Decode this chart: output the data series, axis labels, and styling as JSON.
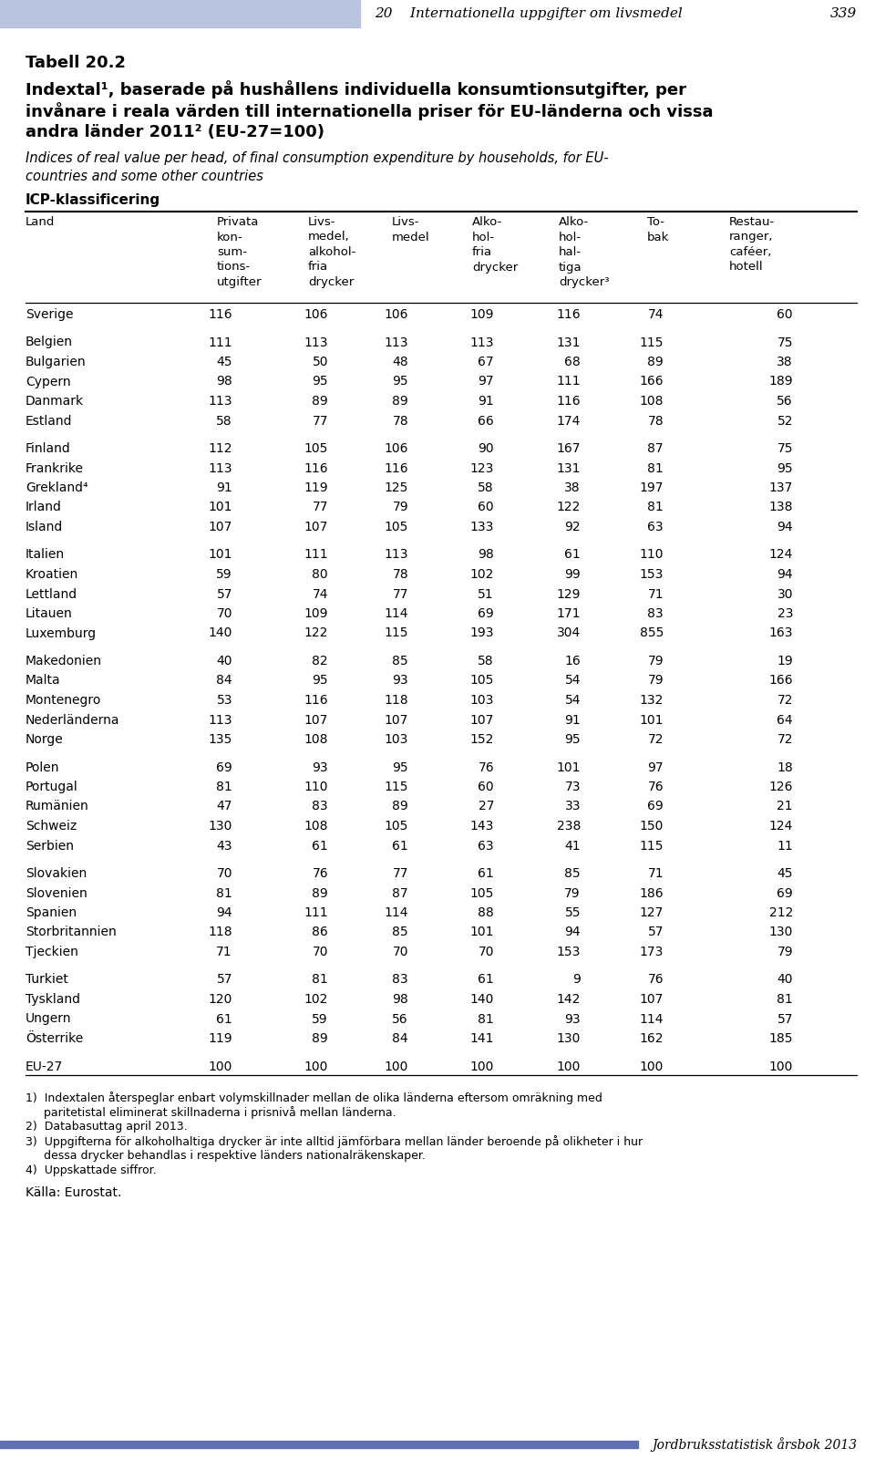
{
  "header_bar_color": "#b8c4e0",
  "page_header_italic": "20    Internationella uppgifter om livsmedel",
  "page_number": "339",
  "title_bold": "Tabell 20.2",
  "title_line1": "Indextal¹, baserade på hushållens individuella konsumtionsutgifter, per",
  "title_line2": "invånare i reala värden till internationella priser för EU-länderna och vissa",
  "title_line3": "andra länder 2011² (EU-27=100)",
  "subtitle_line1": "Indices of real value per head, of final consumption expenditure by households, for EU-",
  "subtitle_line2": "countries and some other countries",
  "icp_label": "ICP-klassificering",
  "col_headers": [
    [
      "Land",
      28,
      "left"
    ],
    [
      "Privata\nkon-\nsum-\ntions-\nutgifter",
      238,
      "left"
    ],
    [
      "Livs-\nmedel,\nalkohol-\nfria\ndrycker",
      338,
      "left"
    ],
    [
      "Livs-\nmedel",
      430,
      "left"
    ],
    [
      "Alko-\nhol-\nfria\ndrycker",
      518,
      "left"
    ],
    [
      "Alko-\nhol-\nhal-\ntiga\ndrycker³",
      613,
      "left"
    ],
    [
      "To-\nbak",
      710,
      "left"
    ],
    [
      "Restau-\nranger,\ncaféer,\nhotell",
      800,
      "left"
    ]
  ],
  "data_cols_x": [
    28,
    255,
    360,
    448,
    542,
    637,
    728,
    870
  ],
  "data_cols_ha": [
    "left",
    "right",
    "right",
    "right",
    "right",
    "right",
    "right",
    "right"
  ],
  "rows": [
    [
      "Sverige",
      116,
      106,
      106,
      109,
      116,
      74,
      60
    ],
    [
      null,
      null,
      null,
      null,
      null,
      null,
      null,
      null
    ],
    [
      "Belgien",
      111,
      113,
      113,
      113,
      131,
      115,
      75
    ],
    [
      "Bulgarien",
      45,
      50,
      48,
      67,
      68,
      89,
      38
    ],
    [
      "Cypern",
      98,
      95,
      95,
      97,
      111,
      166,
      189
    ],
    [
      "Danmark",
      113,
      89,
      89,
      91,
      116,
      108,
      56
    ],
    [
      "Estland",
      58,
      77,
      78,
      66,
      174,
      78,
      52
    ],
    [
      null,
      null,
      null,
      null,
      null,
      null,
      null,
      null
    ],
    [
      "Finland",
      112,
      105,
      106,
      90,
      167,
      87,
      75
    ],
    [
      "Frankrike",
      113,
      116,
      116,
      123,
      131,
      81,
      95
    ],
    [
      "Grekland⁴",
      91,
      119,
      125,
      58,
      38,
      197,
      137
    ],
    [
      "Irland",
      101,
      77,
      79,
      60,
      122,
      81,
      138
    ],
    [
      "Island",
      107,
      107,
      105,
      133,
      92,
      63,
      94
    ],
    [
      null,
      null,
      null,
      null,
      null,
      null,
      null,
      null
    ],
    [
      "Italien",
      101,
      111,
      113,
      98,
      61,
      110,
      124
    ],
    [
      "Kroatien",
      59,
      80,
      78,
      102,
      99,
      153,
      94
    ],
    [
      "Lettland",
      57,
      74,
      77,
      51,
      129,
      71,
      30
    ],
    [
      "Litauen",
      70,
      109,
      114,
      69,
      171,
      83,
      23
    ],
    [
      "Luxemburg",
      140,
      122,
      115,
      193,
      304,
      855,
      163
    ],
    [
      null,
      null,
      null,
      null,
      null,
      null,
      null,
      null
    ],
    [
      "Makedonien",
      40,
      82,
      85,
      58,
      16,
      79,
      19
    ],
    [
      "Malta",
      84,
      95,
      93,
      105,
      54,
      79,
      166
    ],
    [
      "Montenegro",
      53,
      116,
      118,
      103,
      54,
      132,
      72
    ],
    [
      "Nederländerna",
      113,
      107,
      107,
      107,
      91,
      101,
      64
    ],
    [
      "Norge",
      135,
      108,
      103,
      152,
      95,
      72,
      72
    ],
    [
      null,
      null,
      null,
      null,
      null,
      null,
      null,
      null
    ],
    [
      "Polen",
      69,
      93,
      95,
      76,
      101,
      97,
      18
    ],
    [
      "Portugal",
      81,
      110,
      115,
      60,
      73,
      76,
      126
    ],
    [
      "Rumänien",
      47,
      83,
      89,
      27,
      33,
      69,
      21
    ],
    [
      "Schweiz",
      130,
      108,
      105,
      143,
      238,
      150,
      124
    ],
    [
      "Serbien",
      43,
      61,
      61,
      63,
      41,
      115,
      11
    ],
    [
      null,
      null,
      null,
      null,
      null,
      null,
      null,
      null
    ],
    [
      "Slovakien",
      70,
      76,
      77,
      61,
      85,
      71,
      45
    ],
    [
      "Slovenien",
      81,
      89,
      87,
      105,
      79,
      186,
      69
    ],
    [
      "Spanien",
      94,
      111,
      114,
      88,
      55,
      127,
      212
    ],
    [
      "Storbritannien",
      118,
      86,
      85,
      101,
      94,
      57,
      130
    ],
    [
      "Tjeckien",
      71,
      70,
      70,
      70,
      153,
      173,
      79
    ],
    [
      null,
      null,
      null,
      null,
      null,
      null,
      null,
      null
    ],
    [
      "Turkiet",
      57,
      81,
      83,
      61,
      9,
      76,
      40
    ],
    [
      "Tyskland",
      120,
      102,
      98,
      140,
      142,
      107,
      81
    ],
    [
      "Ungern",
      61,
      59,
      56,
      81,
      93,
      114,
      57
    ],
    [
      "Österrike",
      119,
      89,
      84,
      141,
      130,
      162,
      185
    ],
    [
      null,
      null,
      null,
      null,
      null,
      null,
      null,
      null
    ],
    [
      "EU-27",
      100,
      100,
      100,
      100,
      100,
      100,
      100
    ]
  ],
  "footnotes": [
    "1)  Indextalen återspeglar enbart volymskillnader mellan de olika länderna eftersom omräkning med",
    "     paritetistal eliminerat skillnaderna i prisnivå mellan länderna.",
    "2)  Databasuttag april 2013.",
    "3)  Uppgifterna för alkoholhaltiga drycker är inte alltid jämförbara mellan länder beroende på olikheter i hur",
    "     dessa drycker behandlas i respektive länders nationalräkenskaper.",
    "4)  Uppskattade siffror."
  ],
  "source": "Källa: Eurostat.",
  "footer_right": "Jordbruksstatistisk årsbok 2013",
  "bottom_bar_color": "#6070b0"
}
